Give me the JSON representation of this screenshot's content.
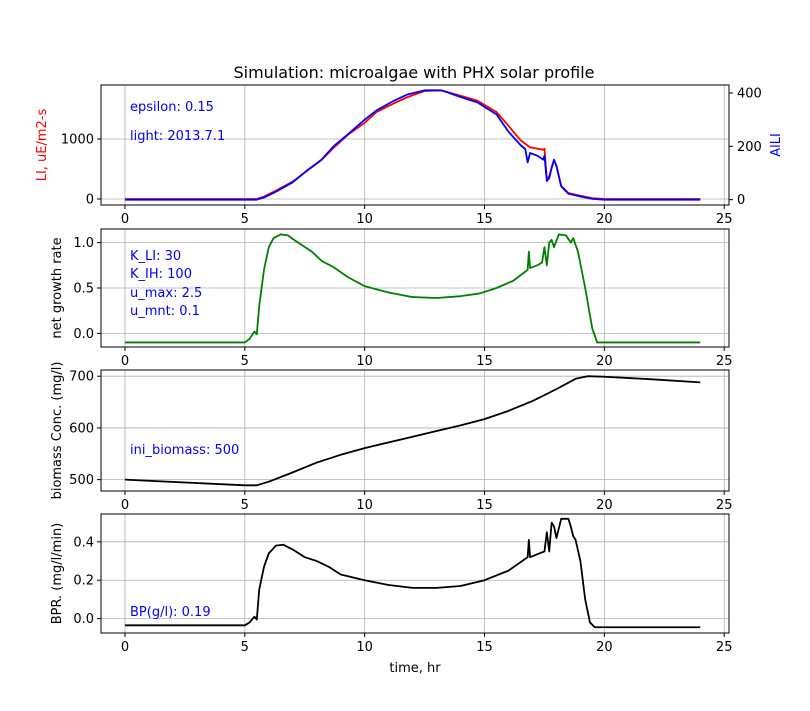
{
  "title": "Simulation: microalgae with PHX solar profile",
  "colors": {
    "red": "#ff0000",
    "blue": "#0000ff",
    "green": "#008000",
    "black": "#000000",
    "annot": "#0000ff",
    "grid": "#b0b0b0"
  },
  "chart_data": [
    {
      "type": "line",
      "title": "Simulation: microalgae with PHX solar profile",
      "xlabel": "",
      "ylabel": "LI, uE/m2-s",
      "ylabel_right": "AlLI",
      "xlim": [
        -1,
        25.2
      ],
      "ylim": [
        -100,
        1900
      ],
      "ylim_right": [
        -20,
        430
      ],
      "xticks": [
        0,
        5,
        10,
        15,
        20,
        25
      ],
      "yticks": [
        0,
        1000
      ],
      "yticks_right": [
        0,
        200,
        400
      ],
      "grid": true,
      "annotations": [
        "epsilon: 0.15",
        "light: 2013.7.1"
      ],
      "series": [
        {
          "axis": "left",
          "color": "red",
          "points": [
            [
              0,
              0
            ],
            [
              5.5,
              0
            ],
            [
              5.8,
              40
            ],
            [
              6.3,
              140
            ],
            [
              7,
              290
            ],
            [
              7.6,
              470
            ],
            [
              8.2,
              650
            ],
            [
              8.7,
              850
            ],
            [
              9.3,
              1070
            ],
            [
              10,
              1270
            ],
            [
              10.5,
              1450
            ],
            [
              11.2,
              1590
            ],
            [
              11.8,
              1700
            ],
            [
              12.5,
              1800
            ],
            [
              13.2,
              1810
            ],
            [
              14,
              1720
            ],
            [
              14.7,
              1640
            ],
            [
              15.5,
              1450
            ],
            [
              16,
              1220
            ],
            [
              16.5,
              980
            ],
            [
              16.9,
              860
            ],
            [
              17.2,
              840
            ],
            [
              17.45,
              820
            ],
            [
              17.5,
              840
            ],
            [
              17.6,
              330
            ],
            [
              17.7,
              380
            ],
            [
              17.8,
              520
            ],
            [
              17.9,
              640
            ],
            [
              18,
              560
            ],
            [
              18.2,
              220
            ],
            [
              18.5,
              100
            ],
            [
              19,
              55
            ],
            [
              19.5,
              15
            ],
            [
              20,
              0
            ],
            [
              24,
              0
            ]
          ]
        },
        {
          "axis": "right",
          "color": "blue",
          "points": [
            [
              0,
              0
            ],
            [
              5.5,
              0
            ],
            [
              5.8,
              8
            ],
            [
              6.3,
              30
            ],
            [
              7,
              65
            ],
            [
              7.6,
              110
            ],
            [
              8.2,
              150
            ],
            [
              8.7,
              200
            ],
            [
              9.3,
              245
            ],
            [
              10,
              300
            ],
            [
              10.5,
              335
            ],
            [
              11.2,
              370
            ],
            [
              11.8,
              395
            ],
            [
              12.5,
              410
            ],
            [
              13.2,
              410
            ],
            [
              14,
              385
            ],
            [
              14.7,
              365
            ],
            [
              15.5,
              320
            ],
            [
              16,
              255
            ],
            [
              16.5,
              205
            ],
            [
              16.7,
              190
            ],
            [
              16.8,
              140
            ],
            [
              16.9,
              175
            ],
            [
              17.2,
              165
            ],
            [
              17.45,
              150
            ],
            [
              17.5,
              165
            ],
            [
              17.6,
              70
            ],
            [
              17.7,
              80
            ],
            [
              17.8,
              120
            ],
            [
              17.9,
              150
            ],
            [
              18,
              125
            ],
            [
              18.2,
              50
            ],
            [
              18.5,
              22
            ],
            [
              19,
              12
            ],
            [
              19.5,
              3
            ],
            [
              20,
              0
            ],
            [
              24,
              0
            ]
          ]
        }
      ]
    },
    {
      "type": "line",
      "xlabel": "",
      "ylabel": "net growth rate",
      "xlim": [
        -1,
        25.2
      ],
      "ylim": [
        -0.15,
        1.15
      ],
      "xticks": [
        0,
        5,
        10,
        15,
        20,
        25
      ],
      "yticks": [
        0.0,
        0.5,
        1.0
      ],
      "grid": true,
      "annotations": [
        "K_LI: 30",
        "K_IH: 100",
        "u_max: 2.5",
        "u_mnt: 0.1"
      ],
      "series": [
        {
          "color": "green",
          "points": [
            [
              0,
              -0.1
            ],
            [
              5,
              -0.1
            ],
            [
              5.2,
              -0.06
            ],
            [
              5.4,
              0.02
            ],
            [
              5.5,
              -0.01
            ],
            [
              5.6,
              0.3
            ],
            [
              5.8,
              0.7
            ],
            [
              6,
              0.95
            ],
            [
              6.2,
              1.05
            ],
            [
              6.5,
              1.09
            ],
            [
              6.8,
              1.08
            ],
            [
              7,
              1.04
            ],
            [
              7.4,
              0.97
            ],
            [
              7.8,
              0.9
            ],
            [
              8.2,
              0.8
            ],
            [
              8.7,
              0.73
            ],
            [
              9.3,
              0.62
            ],
            [
              10,
              0.52
            ],
            [
              11,
              0.45
            ],
            [
              12,
              0.4
            ],
            [
              13,
              0.39
            ],
            [
              14,
              0.41
            ],
            [
              14.8,
              0.44
            ],
            [
              15.5,
              0.5
            ],
            [
              16.2,
              0.58
            ],
            [
              16.8,
              0.7
            ],
            [
              16.85,
              0.9
            ],
            [
              16.9,
              0.72
            ],
            [
              17.2,
              0.75
            ],
            [
              17.4,
              0.78
            ],
            [
              17.5,
              0.95
            ],
            [
              17.6,
              0.75
            ],
            [
              17.7,
              1.0
            ],
            [
              17.8,
              1.03
            ],
            [
              17.9,
              0.95
            ],
            [
              18.1,
              1.09
            ],
            [
              18.4,
              1.08
            ],
            [
              18.6,
              1.0
            ],
            [
              18.7,
              1.05
            ],
            [
              18.9,
              0.9
            ],
            [
              19.2,
              0.5
            ],
            [
              19.5,
              0.05
            ],
            [
              19.7,
              -0.1
            ],
            [
              24,
              -0.1
            ]
          ]
        }
      ]
    },
    {
      "type": "line",
      "xlabel": "",
      "ylabel": "biomass Conc. (mg/l)",
      "xlim": [
        -1,
        25.2
      ],
      "ylim": [
        478,
        712
      ],
      "xticks": [
        0,
        5,
        10,
        15,
        20,
        25
      ],
      "yticks": [
        500,
        600,
        700
      ],
      "grid": true,
      "annotations": [
        "ini_biomass: 500"
      ],
      "series": [
        {
          "color": "black",
          "points": [
            [
              0,
              500
            ],
            [
              5,
              489
            ],
            [
              5.5,
              489
            ],
            [
              6,
              496
            ],
            [
              7,
              514
            ],
            [
              8,
              533
            ],
            [
              9,
              548
            ],
            [
              10,
              561
            ],
            [
              11,
              572
            ],
            [
              12,
              583
            ],
            [
              13,
              594
            ],
            [
              14,
              605
            ],
            [
              15,
              617
            ],
            [
              16,
              633
            ],
            [
              17,
              652
            ],
            [
              18,
              675
            ],
            [
              18.8,
              695
            ],
            [
              19.3,
              700
            ],
            [
              20,
              699
            ],
            [
              22,
              694
            ],
            [
              24,
              688
            ]
          ]
        }
      ]
    },
    {
      "type": "line",
      "xlabel": "time, hr",
      "ylabel": "BPR. (mg/l/min)",
      "xlim": [
        -1,
        25.2
      ],
      "ylim": [
        -0.075,
        0.545
      ],
      "xticks": [
        0,
        5,
        10,
        15,
        20,
        25
      ],
      "yticks": [
        0.0,
        0.2,
        0.4
      ],
      "grid": true,
      "annotations": [
        "BP(g/l): 0.19"
      ],
      "series": [
        {
          "color": "black",
          "points": [
            [
              0,
              -0.035
            ],
            [
              5,
              -0.035
            ],
            [
              5.2,
              -0.02
            ],
            [
              5.4,
              0.01
            ],
            [
              5.5,
              -0.005
            ],
            [
              5.6,
              0.15
            ],
            [
              5.8,
              0.27
            ],
            [
              6,
              0.34
            ],
            [
              6.3,
              0.38
            ],
            [
              6.6,
              0.385
            ],
            [
              7,
              0.36
            ],
            [
              7.5,
              0.32
            ],
            [
              8,
              0.3
            ],
            [
              8.5,
              0.27
            ],
            [
              9,
              0.23
            ],
            [
              10,
              0.2
            ],
            [
              11,
              0.175
            ],
            [
              12,
              0.16
            ],
            [
              13,
              0.16
            ],
            [
              14,
              0.17
            ],
            [
              15,
              0.2
            ],
            [
              16,
              0.25
            ],
            [
              16.8,
              0.32
            ],
            [
              16.85,
              0.41
            ],
            [
              16.9,
              0.32
            ],
            [
              17.3,
              0.34
            ],
            [
              17.5,
              0.35
            ],
            [
              17.6,
              0.45
            ],
            [
              17.7,
              0.35
            ],
            [
              17.8,
              0.5
            ],
            [
              17.9,
              0.48
            ],
            [
              18,
              0.42
            ],
            [
              18.2,
              0.52
            ],
            [
              18.5,
              0.52
            ],
            [
              18.6,
              0.48
            ],
            [
              18.7,
              0.43
            ],
            [
              18.8,
              0.41
            ],
            [
              19,
              0.3
            ],
            [
              19.2,
              0.1
            ],
            [
              19.4,
              -0.02
            ],
            [
              19.6,
              -0.045
            ],
            [
              24,
              -0.045
            ]
          ]
        }
      ]
    }
  ]
}
